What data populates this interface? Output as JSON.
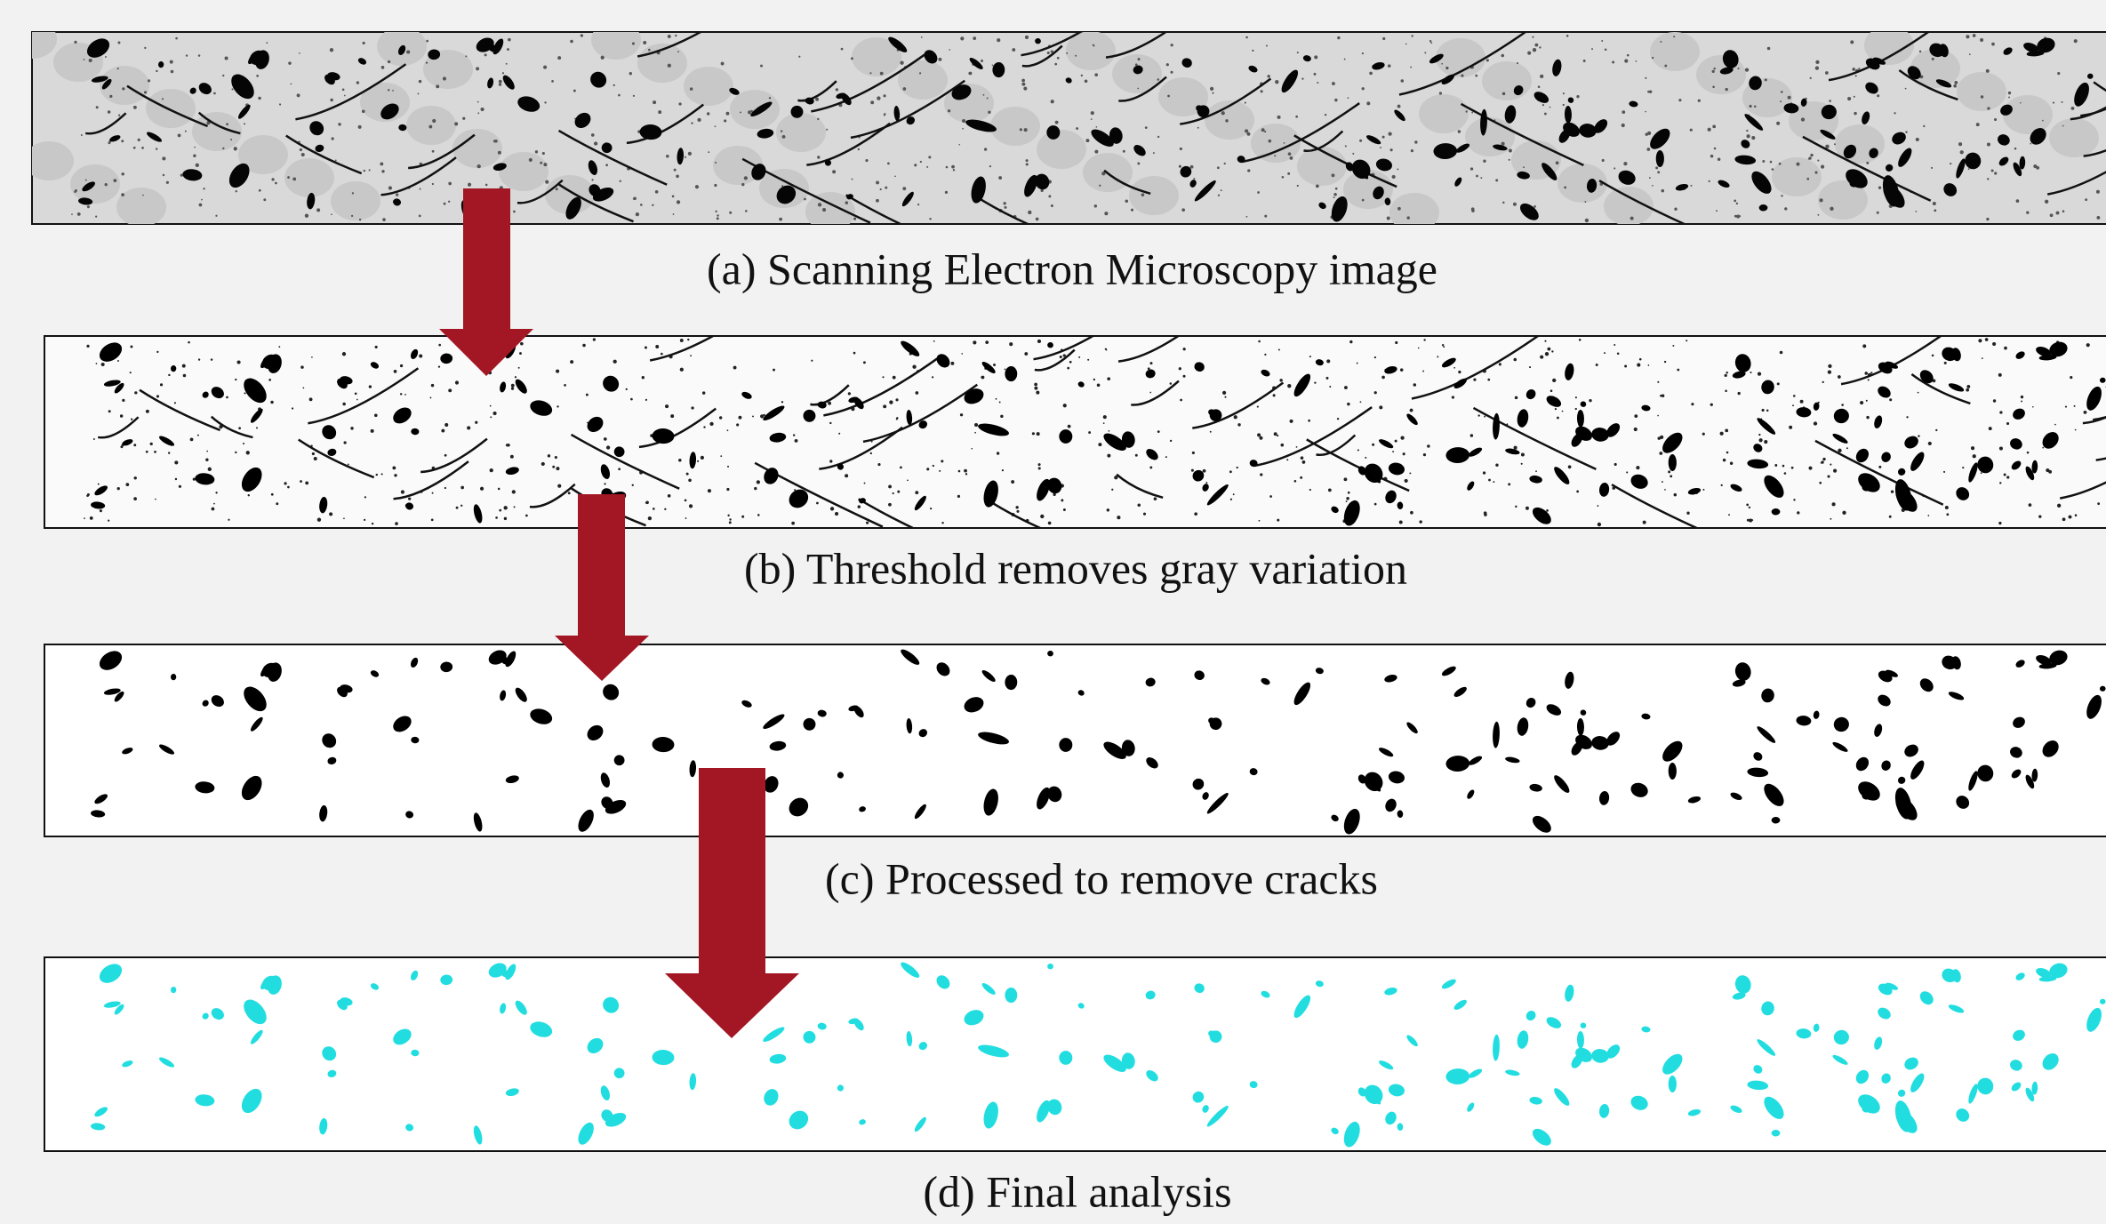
{
  "captions": [
    "(a) Scanning Electron Microscopy image",
    "(b) Threshold removes gray variation",
    "(c) Processed to remove cracks",
    "(d) Final analysis"
  ]
}
